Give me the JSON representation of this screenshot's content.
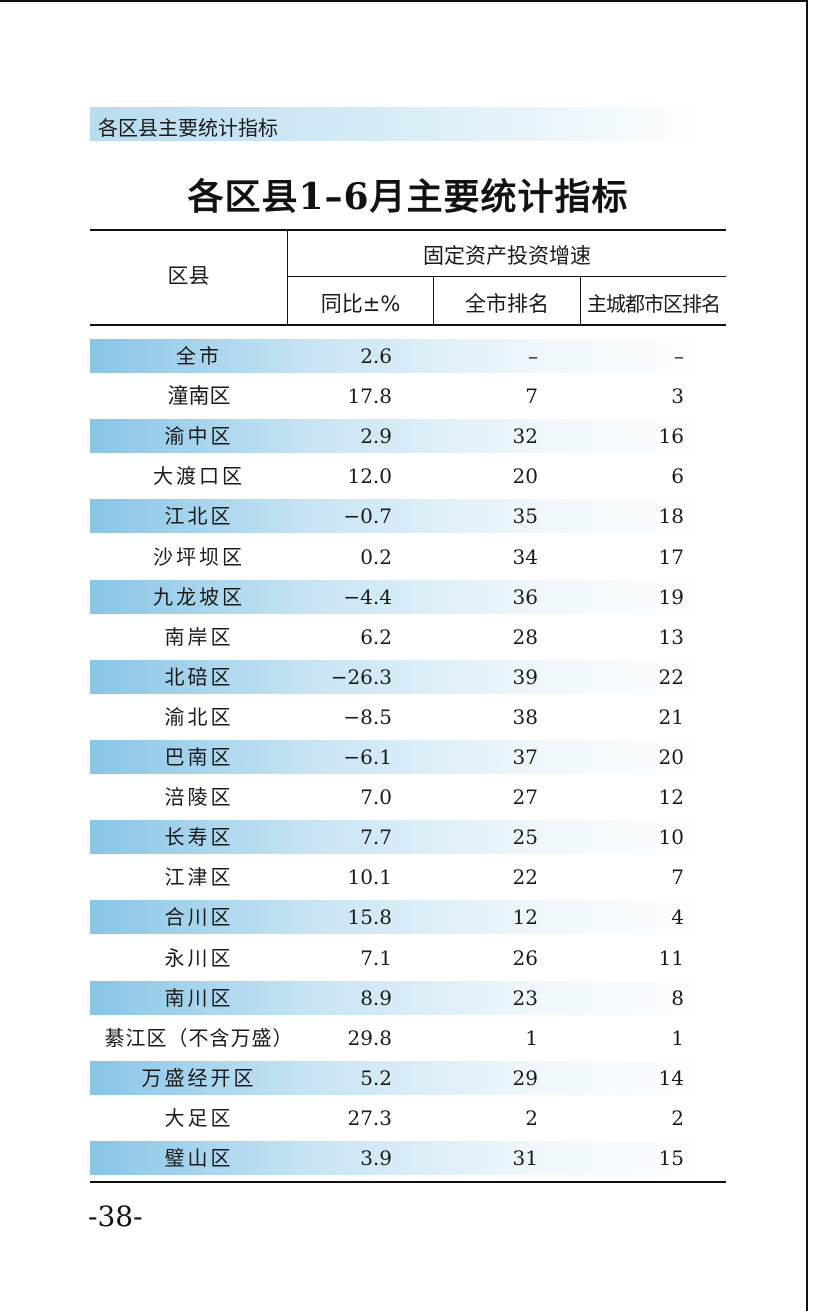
{
  "section_label": "各区县主要统计指标",
  "title": "各区县1–6月主要统计指标",
  "headers": {
    "district": "区县",
    "group": "固定资产投资增速",
    "yoy": "同比±%",
    "city_rank": "全市排名",
    "main_rank": "主城都市区排名"
  },
  "rows": [
    {
      "name": "全市",
      "yoy": "2.6",
      "city_rank": "–",
      "main_rank": "–"
    },
    {
      "name": "潼南区",
      "yoy": "17.8",
      "city_rank": "7",
      "main_rank": "3"
    },
    {
      "name": "渝中区",
      "yoy": "2.9",
      "city_rank": "32",
      "main_rank": "16"
    },
    {
      "name": "大渡口区",
      "yoy": "12.0",
      "city_rank": "20",
      "main_rank": "6"
    },
    {
      "name": "江北区",
      "yoy": "−0.7",
      "city_rank": "35",
      "main_rank": "18"
    },
    {
      "name": "沙坪坝区",
      "yoy": "0.2",
      "city_rank": "34",
      "main_rank": "17"
    },
    {
      "name": "九龙坡区",
      "yoy": "−4.4",
      "city_rank": "36",
      "main_rank": "19"
    },
    {
      "name": "南岸区",
      "yoy": "6.2",
      "city_rank": "28",
      "main_rank": "13"
    },
    {
      "name": "北碚区",
      "yoy": "−26.3",
      "city_rank": "39",
      "main_rank": "22"
    },
    {
      "name": "渝北区",
      "yoy": "−8.5",
      "city_rank": "38",
      "main_rank": "21"
    },
    {
      "name": "巴南区",
      "yoy": "−6.1",
      "city_rank": "37",
      "main_rank": "20"
    },
    {
      "name": "涪陵区",
      "yoy": "7.0",
      "city_rank": "27",
      "main_rank": "12"
    },
    {
      "name": "长寿区",
      "yoy": "7.7",
      "city_rank": "25",
      "main_rank": "10"
    },
    {
      "name": "江津区",
      "yoy": "10.1",
      "city_rank": "22",
      "main_rank": "7"
    },
    {
      "name": "合川区",
      "yoy": "15.8",
      "city_rank": "12",
      "main_rank": "4"
    },
    {
      "name": "永川区",
      "yoy": "7.1",
      "city_rank": "26",
      "main_rank": "11"
    },
    {
      "name": "南川区",
      "yoy": "8.9",
      "city_rank": "23",
      "main_rank": "8"
    },
    {
      "name": "綦江区（不含万盛）",
      "yoy": "29.8",
      "city_rank": "1",
      "main_rank": "1"
    },
    {
      "name": "万盛经开区",
      "yoy": "5.2",
      "city_rank": "29",
      "main_rank": "14"
    },
    {
      "name": "大足区",
      "yoy": "27.3",
      "city_rank": "2",
      "main_rank": "2"
    },
    {
      "name": "璧山区",
      "yoy": "3.9",
      "city_rank": "31",
      "main_rank": "15"
    }
  ],
  "page_number": "-38-"
}
